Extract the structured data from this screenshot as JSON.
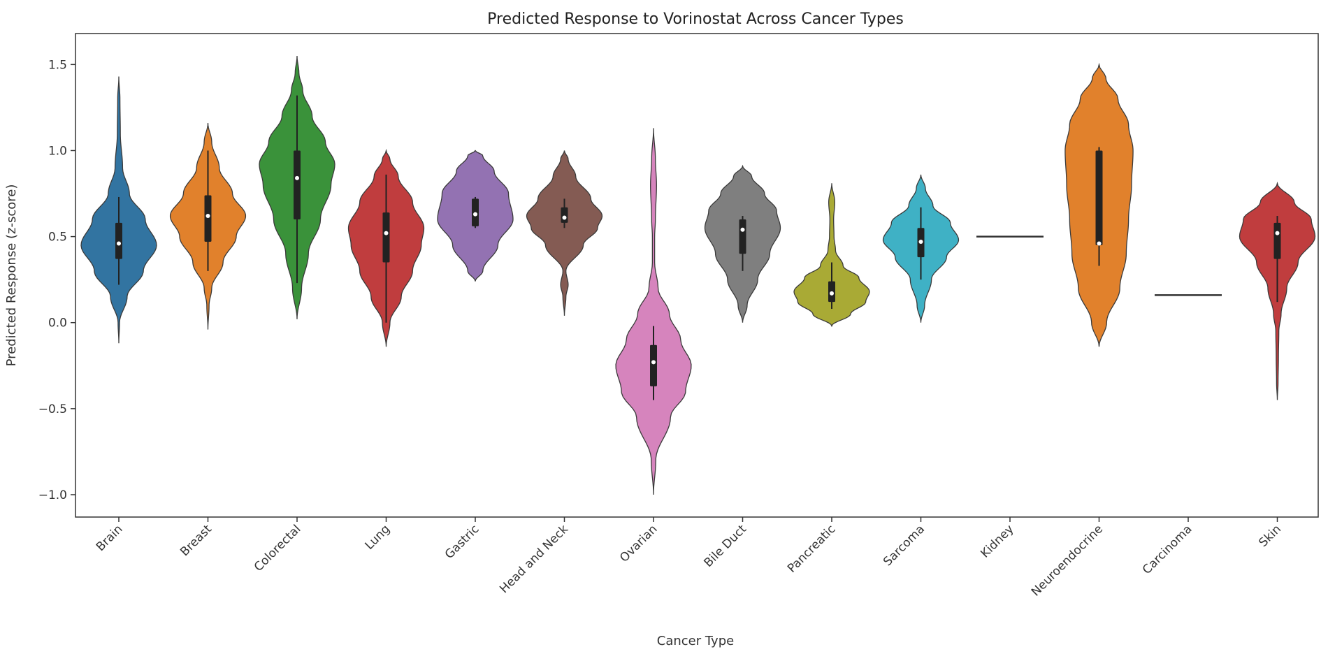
{
  "chart_data": {
    "type": "violin",
    "title": "Predicted Response to Vorinostat Across Cancer Types",
    "xlabel": "Cancer Type",
    "ylabel": "Predicted Response (z-score)",
    "ylim": [
      -1.13,
      1.68
    ],
    "yticks": [
      -1.0,
      -0.5,
      0.0,
      0.5,
      1.0,
      1.5
    ],
    "ytick_labels": [
      "−1.0",
      "−0.5",
      "0.0",
      "0.5",
      "1.0",
      "1.5"
    ],
    "grid": false,
    "categories": [
      "Brain",
      "Breast",
      "Colorectal",
      "Lung",
      "Gastric",
      "Head and Neck",
      "Ovarian",
      "Bile Duct",
      "Pancreatic",
      "Sarcoma",
      "Kidney",
      "Neuroendocrine",
      "Carcinoma",
      "Skin"
    ],
    "series": [
      {
        "name": "Brain",
        "color": "#3274a1",
        "min": -0.12,
        "max": 1.43,
        "q1": 0.37,
        "median": 0.46,
        "q3": 0.58,
        "wlow": 0.22,
        "whigh": 0.73,
        "profile": [
          [
            -0.12,
            0
          ],
          [
            0.0,
            0.02
          ],
          [
            0.15,
            0.22
          ],
          [
            0.3,
            0.65
          ],
          [
            0.45,
            1.0
          ],
          [
            0.6,
            0.7
          ],
          [
            0.75,
            0.28
          ],
          [
            0.9,
            0.1
          ],
          [
            1.1,
            0.04
          ],
          [
            1.3,
            0.03
          ],
          [
            1.43,
            0
          ]
        ]
      },
      {
        "name": "Breast",
        "color": "#e1812c",
        "min": -0.04,
        "max": 1.16,
        "q1": 0.47,
        "median": 0.62,
        "q3": 0.74,
        "wlow": 0.3,
        "whigh": 1.0,
        "profile": [
          [
            -0.04,
            0
          ],
          [
            0.1,
            0.03
          ],
          [
            0.2,
            0.1
          ],
          [
            0.35,
            0.4
          ],
          [
            0.5,
            0.75
          ],
          [
            0.62,
            1.0
          ],
          [
            0.75,
            0.65
          ],
          [
            0.9,
            0.3
          ],
          [
            1.05,
            0.1
          ],
          [
            1.16,
            0
          ]
        ]
      },
      {
        "name": "Colorectal",
        "color": "#3a923a",
        "min": 0.02,
        "max": 1.55,
        "q1": 0.6,
        "median": 0.84,
        "q3": 1.0,
        "wlow": 0.23,
        "whigh": 1.32,
        "profile": [
          [
            0.02,
            0
          ],
          [
            0.2,
            0.12
          ],
          [
            0.4,
            0.3
          ],
          [
            0.6,
            0.62
          ],
          [
            0.8,
            0.9
          ],
          [
            0.92,
            1.0
          ],
          [
            1.05,
            0.75
          ],
          [
            1.2,
            0.4
          ],
          [
            1.35,
            0.15
          ],
          [
            1.45,
            0.05
          ],
          [
            1.55,
            0
          ]
        ]
      },
      {
        "name": "Lung",
        "color": "#c03d3e",
        "min": -0.14,
        "max": 1.0,
        "q1": 0.35,
        "median": 0.52,
        "q3": 0.64,
        "wlow": 0.0,
        "whigh": 0.86,
        "profile": [
          [
            -0.14,
            0
          ],
          [
            0.0,
            0.1
          ],
          [
            0.15,
            0.4
          ],
          [
            0.3,
            0.7
          ],
          [
            0.45,
            0.93
          ],
          [
            0.55,
            1.0
          ],
          [
            0.7,
            0.7
          ],
          [
            0.85,
            0.32
          ],
          [
            0.95,
            0.1
          ],
          [
            1.0,
            0
          ]
        ]
      },
      {
        "name": "Gastric",
        "color": "#9372b2",
        "min": 0.24,
        "max": 1.0,
        "q1": 0.56,
        "median": 0.63,
        "q3": 0.72,
        "wlow": 0.55,
        "whigh": 0.73,
        "profile": [
          [
            0.24,
            0
          ],
          [
            0.3,
            0.2
          ],
          [
            0.45,
            0.6
          ],
          [
            0.6,
            1.0
          ],
          [
            0.75,
            0.88
          ],
          [
            0.88,
            0.5
          ],
          [
            0.97,
            0.2
          ],
          [
            1.0,
            0
          ]
        ]
      },
      {
        "name": "Head and Neck",
        "color": "#845b53",
        "min": 0.04,
        "max": 1.0,
        "q1": 0.58,
        "median": 0.61,
        "q3": 0.67,
        "wlow": 0.55,
        "whigh": 0.72,
        "profile": [
          [
            0.04,
            0
          ],
          [
            0.15,
            0.04
          ],
          [
            0.22,
            0.1
          ],
          [
            0.3,
            0.04
          ],
          [
            0.45,
            0.5
          ],
          [
            0.55,
            0.88
          ],
          [
            0.62,
            1.0
          ],
          [
            0.72,
            0.7
          ],
          [
            0.85,
            0.3
          ],
          [
            0.95,
            0.1
          ],
          [
            1.0,
            0
          ]
        ]
      },
      {
        "name": "Ovarian",
        "color": "#d684bd",
        "min": -1.0,
        "max": 1.13,
        "q1": -0.37,
        "median": -0.23,
        "q3": -0.13,
        "wlow": -0.45,
        "whigh": -0.02,
        "profile": [
          [
            -1.0,
            0
          ],
          [
            -0.8,
            0.06
          ],
          [
            -0.55,
            0.45
          ],
          [
            -0.4,
            0.85
          ],
          [
            -0.25,
            1.0
          ],
          [
            -0.1,
            0.72
          ],
          [
            0.05,
            0.42
          ],
          [
            0.2,
            0.12
          ],
          [
            0.35,
            0.03
          ],
          [
            0.5,
            0.03
          ],
          [
            0.6,
            0.05
          ],
          [
            0.8,
            0.08
          ],
          [
            0.95,
            0.05
          ],
          [
            1.13,
            0
          ]
        ]
      },
      {
        "name": "Bile Duct",
        "color": "#7f7f7f",
        "min": 0.0,
        "max": 0.91,
        "q1": 0.4,
        "median": 0.54,
        "q3": 0.6,
        "wlow": 0.3,
        "whigh": 0.62,
        "profile": [
          [
            0.0,
            0
          ],
          [
            0.1,
            0.12
          ],
          [
            0.25,
            0.4
          ],
          [
            0.4,
            0.72
          ],
          [
            0.55,
            1.0
          ],
          [
            0.65,
            0.9
          ],
          [
            0.75,
            0.58
          ],
          [
            0.85,
            0.24
          ],
          [
            0.91,
            0
          ]
        ]
      },
      {
        "name": "Pancreatic",
        "color": "#a9aa35",
        "min": -0.02,
        "max": 0.81,
        "q1": 0.12,
        "median": 0.17,
        "q3": 0.24,
        "wlow": 0.08,
        "whigh": 0.35,
        "profile": [
          [
            -0.02,
            0
          ],
          [
            0.05,
            0.5
          ],
          [
            0.12,
            0.9
          ],
          [
            0.18,
            1.0
          ],
          [
            0.26,
            0.72
          ],
          [
            0.33,
            0.3
          ],
          [
            0.42,
            0.1
          ],
          [
            0.5,
            0.06
          ],
          [
            0.6,
            0.05
          ],
          [
            0.7,
            0.08
          ],
          [
            0.81,
            0
          ]
        ]
      },
      {
        "name": "Sarcoma",
        "color": "#3fb1c5",
        "min": 0.0,
        "max": 0.86,
        "q1": 0.38,
        "median": 0.47,
        "q3": 0.55,
        "wlow": 0.25,
        "whigh": 0.67,
        "profile": [
          [
            0.0,
            0
          ],
          [
            0.1,
            0.1
          ],
          [
            0.25,
            0.28
          ],
          [
            0.38,
            0.68
          ],
          [
            0.48,
            1.0
          ],
          [
            0.58,
            0.78
          ],
          [
            0.68,
            0.32
          ],
          [
            0.78,
            0.12
          ],
          [
            0.86,
            0
          ]
        ]
      },
      {
        "name": "Kidney",
        "color": "#333333",
        "single_value": 0.5
      },
      {
        "name": "Neuroendocrine",
        "color": "#e1812c",
        "min": -0.14,
        "max": 1.5,
        "q1": 0.45,
        "median": 0.46,
        "q3": 1.0,
        "wlow": 0.33,
        "whigh": 1.02,
        "profile": [
          [
            -0.14,
            0
          ],
          [
            0.0,
            0.2
          ],
          [
            0.2,
            0.55
          ],
          [
            0.4,
            0.72
          ],
          [
            0.6,
            0.78
          ],
          [
            0.8,
            0.86
          ],
          [
            1.0,
            0.9
          ],
          [
            1.15,
            0.78
          ],
          [
            1.3,
            0.5
          ],
          [
            1.42,
            0.18
          ],
          [
            1.5,
            0
          ]
        ]
      },
      {
        "name": "Carcinoma",
        "color": "#333333",
        "single_value": 0.16
      },
      {
        "name": "Skin",
        "color": "#c03d3e",
        "min": -0.45,
        "max": 0.81,
        "q1": 0.37,
        "median": 0.52,
        "q3": 0.58,
        "wlow": 0.12,
        "whigh": 0.62,
        "profile": [
          [
            -0.45,
            0
          ],
          [
            -0.35,
            0.02
          ],
          [
            -0.2,
            0.03
          ],
          [
            -0.05,
            0.04
          ],
          [
            0.05,
            0.1
          ],
          [
            0.2,
            0.25
          ],
          [
            0.35,
            0.55
          ],
          [
            0.5,
            1.0
          ],
          [
            0.6,
            0.9
          ],
          [
            0.7,
            0.45
          ],
          [
            0.81,
            0
          ]
        ]
      }
    ]
  }
}
